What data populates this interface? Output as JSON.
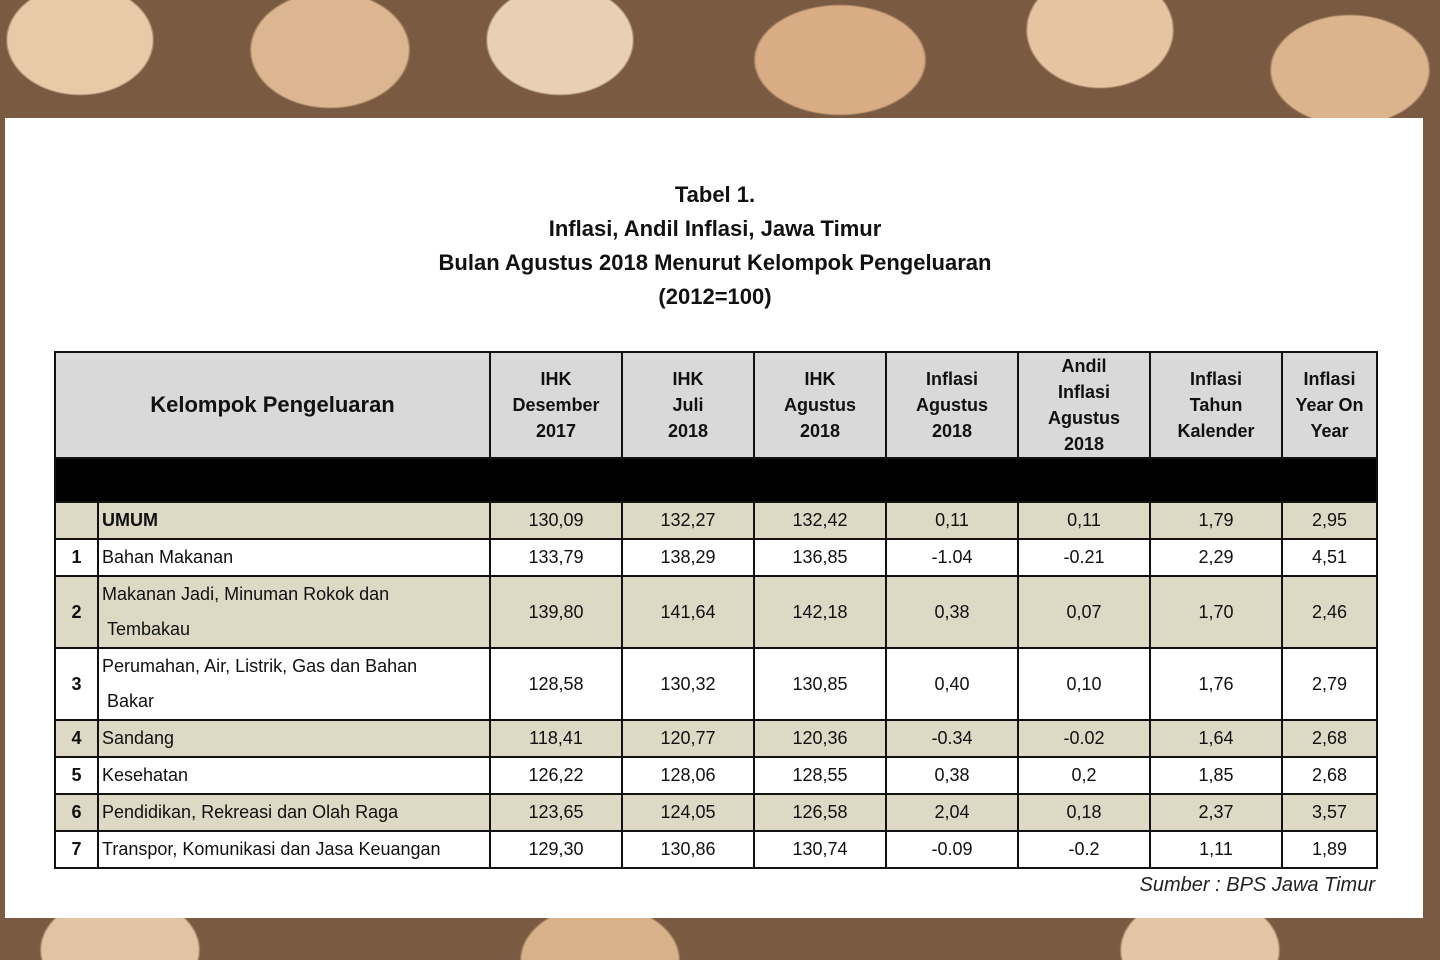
{
  "title": [
    "Tabel 1.",
    "Inflasi, Andil Inflasi, Jawa Timur",
    "Bulan Agustus 2018 Menurut Kelompok Pengeluaran",
    "(2012=100)"
  ],
  "table": {
    "headers": [
      [
        "Kelompok  Pengeluaran"
      ],
      [
        "IHK",
        "Desember",
        "2017"
      ],
      [
        "IHK",
        "Juli",
        "2018"
      ],
      [
        "IHK",
        "Agustus",
        "2018"
      ],
      [
        "Inflasi",
        "Agustus",
        "2018"
      ],
      [
        "Andil",
        "Inflasi",
        "Agustus",
        "2018"
      ],
      [
        "Inflasi",
        "Tahun",
        "Kalender"
      ],
      [
        "Inflasi",
        "Year On",
        "Year"
      ]
    ],
    "rows": [
      {
        "no": null,
        "name": [
          "UMUM"
        ],
        "values": [
          "130,09",
          "132,27",
          "132,42",
          "0,11",
          "0,11",
          "1,79",
          "2,95"
        ]
      },
      {
        "no": "1",
        "name": [
          "Bahan Makanan"
        ],
        "values": [
          "133,79",
          "138,29",
          "136,85",
          "-1.04",
          "-0.21",
          "2,29",
          "4,51"
        ]
      },
      {
        "no": "2",
        "name": [
          "Makanan Jadi, Minuman Rokok dan",
          "Tembakau"
        ],
        "values": [
          "139,80",
          "141,64",
          "142,18",
          "0,38",
          "0,07",
          "1,70",
          "2,46"
        ]
      },
      {
        "no": "3",
        "name": [
          "Perumahan, Air, Listrik, Gas dan Bahan",
          "Bakar"
        ],
        "values": [
          "128,58",
          "130,32",
          "130,85",
          "0,40",
          "0,10",
          "1,76",
          "2,79"
        ]
      },
      {
        "no": "4",
        "name": [
          "Sandang"
        ],
        "values": [
          "118,41",
          "120,77",
          "120,36",
          "-0.34",
          "-0.02",
          "1,64",
          "2,68"
        ]
      },
      {
        "no": "5",
        "name": [
          "Kesehatan"
        ],
        "values": [
          "126,22",
          "128,06",
          "128,55",
          "0,38",
          "0,2",
          "1,85",
          "2,68"
        ]
      },
      {
        "no": "6",
        "name": [
          "Pendidikan, Rekreasi dan Olah Raga"
        ],
        "values": [
          "123,65",
          "124,05",
          "126,58",
          "2,04",
          "0,18",
          "2,37",
          "3,57"
        ]
      },
      {
        "no": "7",
        "name": [
          "Transpor, Komunikasi dan Jasa Keuangan"
        ],
        "values": [
          "129,30",
          "130,86",
          "130,74",
          "-0.09",
          "-0.2",
          "1,11",
          "1,89"
        ]
      }
    ]
  },
  "source": "Sumber : BPS Jawa Timur"
}
